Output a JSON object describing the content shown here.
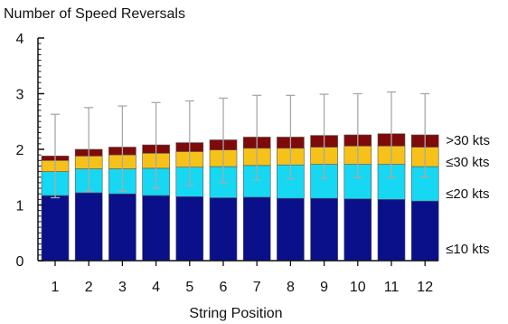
{
  "chart_data": {
    "type": "bar",
    "stacked": true,
    "title": "Number of Speed Reversals",
    "xlabel": "String Position",
    "ylabel": "",
    "ylim": [
      0,
      4
    ],
    "yticks": [
      "0",
      "1",
      "2",
      "3",
      "4"
    ],
    "grid": false,
    "legend_placement": "right",
    "categories": [
      "1",
      "2",
      "3",
      "4",
      "5",
      "6",
      "7",
      "8",
      "9",
      "10",
      "11",
      "12"
    ],
    "series": [
      {
        "name": "≤10 kts",
        "color": "#0a0f8a",
        "values": [
          1.17,
          1.22,
          1.2,
          1.17,
          1.15,
          1.13,
          1.14,
          1.12,
          1.12,
          1.11,
          1.1,
          1.07
        ]
      },
      {
        "name": "≤20 kts",
        "color": "#16d8f2",
        "values": [
          0.43,
          0.43,
          0.45,
          0.49,
          0.53,
          0.56,
          0.57,
          0.6,
          0.61,
          0.62,
          0.63,
          0.62
        ]
      },
      {
        "name": "≤30 kts",
        "color": "#f6c21a",
        "values": [
          0.2,
          0.23,
          0.25,
          0.27,
          0.28,
          0.3,
          0.31,
          0.3,
          0.31,
          0.33,
          0.33,
          0.35
        ]
      },
      {
        "name": ">30 kts",
        "color": "#7f0a0a",
        "values": [
          0.08,
          0.12,
          0.14,
          0.15,
          0.16,
          0.18,
          0.2,
          0.2,
          0.21,
          0.2,
          0.22,
          0.22
        ]
      }
    ],
    "error_bars": {
      "color": "#a9a9a9",
      "lower": [
        1.13,
        1.24,
        1.25,
        1.3,
        1.35,
        1.4,
        1.45,
        1.47,
        1.48,
        1.49,
        1.49,
        1.5
      ],
      "upper": [
        2.63,
        2.75,
        2.78,
        2.84,
        2.87,
        2.92,
        2.97,
        2.97,
        2.99,
        3.0,
        3.03,
        3.0
      ]
    }
  }
}
